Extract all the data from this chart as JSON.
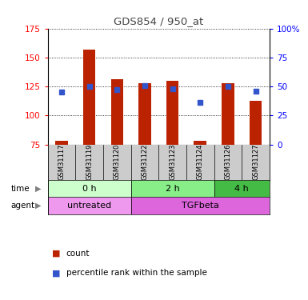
{
  "title": "GDS854 / 950_at",
  "samples": [
    "GSM31117",
    "GSM31119",
    "GSM31120",
    "GSM31122",
    "GSM31123",
    "GSM31124",
    "GSM31126",
    "GSM31127"
  ],
  "bar_values": [
    78,
    157,
    131,
    128,
    130,
    78,
    128,
    113
  ],
  "dot_values_pct": [
    45,
    50,
    47,
    51,
    48,
    36,
    50,
    46
  ],
  "ylim_left": [
    75,
    175
  ],
  "ylim_right": [
    0,
    100
  ],
  "yticks_left": [
    75,
    100,
    125,
    150,
    175
  ],
  "yticks_right": [
    0,
    25,
    50,
    75,
    100
  ],
  "bar_color": "#bb2200",
  "dot_color": "#3355cc",
  "bar_bottom": 75,
  "time_groups": [
    {
      "label": "0 h",
      "start": 0,
      "end": 3,
      "color": "#ccffcc"
    },
    {
      "label": "2 h",
      "start": 3,
      "end": 6,
      "color": "#88ee88"
    },
    {
      "label": "4 h",
      "start": 6,
      "end": 8,
      "color": "#44bb44"
    }
  ],
  "agent_groups": [
    {
      "label": "untreated",
      "start": 0,
      "end": 3,
      "color": "#ee99ee"
    },
    {
      "label": "TGFbeta",
      "start": 3,
      "end": 8,
      "color": "#dd66dd"
    }
  ],
  "time_label": "time",
  "agent_label": "agent",
  "legend_count": "count",
  "legend_pct": "percentile rank within the sample",
  "bg_color": "#ffffff",
  "sample_bg": "#cccccc",
  "title_color": "#444444"
}
